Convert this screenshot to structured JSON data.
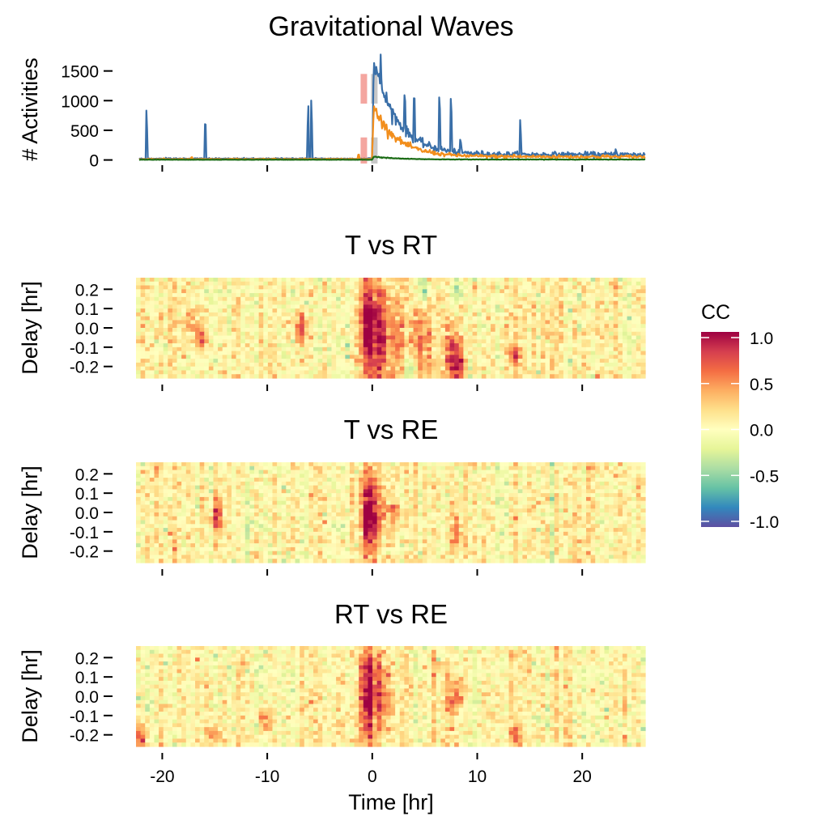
{
  "chart_data": [
    {
      "type": "line",
      "title": "Gravitational Waves",
      "ylabel": "# Activities",
      "xlabel": "",
      "xlim": [
        -22.5,
        26
      ],
      "ylim": [
        -60,
        1850
      ],
      "xticks": [
        -20,
        -10,
        0,
        10,
        20
      ],
      "yticks": [
        0,
        500,
        1000,
        1500
      ],
      "ytick_labels": [
        "0",
        "500",
        "1000",
        "1500"
      ],
      "colors": {
        "T": "#3a6fa8",
        "RT": "#f28e1c",
        "RE": "#1a6b14",
        "marker_red": "#f4a6a0",
        "marker_grey": "#c8c8c8"
      },
      "series": [
        {
          "key": "T",
          "peak": 1800,
          "base_before": 15,
          "base_after": 90,
          "spikes": [
            [
              -21.5,
              910
            ],
            [
              -15.9,
              810
            ],
            [
              -6.1,
              1000
            ],
            [
              -5.8,
              1100
            ],
            [
              0.4,
              1600
            ],
            [
              0.8,
              1800
            ],
            [
              3.1,
              1400
            ],
            [
              4.0,
              1400
            ],
            [
              6.4,
              1290
            ],
            [
              7.5,
              1240
            ],
            [
              8.4,
              430
            ],
            [
              14.1,
              740
            ],
            [
              23.2,
              220
            ]
          ]
        },
        {
          "key": "RT",
          "peak": 950,
          "base_before": 10,
          "base_after": 55,
          "spikes": [
            [
              -17.2,
              60
            ],
            [
              -1.3,
              120
            ],
            [
              5.5,
              200
            ],
            [
              13.5,
              120
            ],
            [
              22.0,
              90
            ]
          ]
        },
        {
          "key": "RE",
          "peak": 60,
          "base_before": 3,
          "base_after": 8,
          "spikes": []
        }
      ],
      "markers": [
        {
          "x": -0.8,
          "y0": -60,
          "y1": 380,
          "color": "marker_red"
        },
        {
          "x": -0.8,
          "y0": 950,
          "y1": 1450,
          "color": "marker_red"
        },
        {
          "x": 0.2,
          "y0": -60,
          "y1": 380,
          "color": "marker_grey"
        },
        {
          "x": 0.2,
          "y0": 950,
          "y1": 1450,
          "color": "marker_grey"
        }
      ]
    },
    {
      "type": "heatmap",
      "title": "T vs RT",
      "ylabel": "Delay [hr]",
      "xlim": [
        -22.5,
        26
      ],
      "ylim": [
        -0.26,
        0.26
      ],
      "yticks": [
        0.2,
        0.1,
        0.0,
        -0.1,
        -0.2
      ],
      "ytick_labels": [
        "0.2",
        "0.1",
        "0.0",
        "-0.1",
        "-0.2"
      ],
      "features": [
        {
          "x": -0.4,
          "y": 0.0,
          "v": 0.95,
          "sx": 0.6,
          "sy": 0.18
        },
        {
          "x": 1.0,
          "y": -0.05,
          "v": 0.6,
          "sx": 0.6,
          "sy": 0.18
        },
        {
          "x": 2.5,
          "y": -0.05,
          "v": 0.4,
          "sx": 0.6,
          "sy": 0.2
        },
        {
          "x": 4.5,
          "y": -0.1,
          "v": 0.45,
          "sx": 0.6,
          "sy": 0.15
        },
        {
          "x": 8.0,
          "y": -0.2,
          "v": 0.8,
          "sx": 0.5,
          "sy": 0.08
        },
        {
          "x": 7.5,
          "y": -0.1,
          "v": 0.45,
          "sx": 0.5,
          "sy": 0.1
        },
        {
          "x": -6.8,
          "y": 0.0,
          "v": 0.7,
          "sx": 0.4,
          "sy": 0.05
        },
        {
          "x": -16.3,
          "y": -0.05,
          "v": 0.6,
          "sx": 0.4,
          "sy": 0.05
        },
        {
          "x": -17.2,
          "y": 0.05,
          "v": 0.45,
          "sx": 0.4,
          "sy": 0.05
        },
        {
          "x": 13.6,
          "y": -0.14,
          "v": 0.7,
          "sx": 0.4,
          "sy": 0.04
        },
        {
          "x": 5.0,
          "y": 0.2,
          "v": -0.55,
          "sx": 0.4,
          "sy": 0.05
        },
        {
          "x": 3.5,
          "y": -0.2,
          "v": -0.5,
          "sx": 0.4,
          "sy": 0.05
        },
        {
          "x": 8.2,
          "y": 0.2,
          "v": -0.4,
          "sx": 0.4,
          "sy": 0.05
        }
      ]
    },
    {
      "type": "heatmap",
      "title": "T vs RE",
      "ylabel": "Delay [hr]",
      "xlim": [
        -22.5,
        26
      ],
      "ylim": [
        -0.26,
        0.26
      ],
      "yticks": [
        0.2,
        0.1,
        0.0,
        -0.1,
        -0.2
      ],
      "ytick_labels": [
        "0.2",
        "0.1",
        "0.0",
        "-0.1",
        "-0.2"
      ],
      "features": [
        {
          "x": -0.4,
          "y": 0.0,
          "v": 0.95,
          "sx": 0.5,
          "sy": 0.15
        },
        {
          "x": 0.6,
          "y": 0.0,
          "v": 0.45,
          "sx": 0.6,
          "sy": 0.12
        },
        {
          "x": 2.0,
          "y": 0.0,
          "v": 0.3,
          "sx": 0.6,
          "sy": 0.04
        },
        {
          "x": -14.8,
          "y": -0.02,
          "v": 0.6,
          "sx": 0.4,
          "sy": 0.05
        },
        {
          "x": 8.0,
          "y": -0.1,
          "v": 0.35,
          "sx": 0.5,
          "sy": 0.08
        }
      ]
    },
    {
      "type": "heatmap",
      "title": "RT vs RE",
      "ylabel": "Delay [hr]",
      "xlim": [
        -22.5,
        26
      ],
      "ylim": [
        -0.26,
        0.26
      ],
      "yticks": [
        0.2,
        0.1,
        0.0,
        -0.1,
        -0.2
      ],
      "ytick_labels": [
        "0.2",
        "0.1",
        "0.0",
        "-0.1",
        "-0.2"
      ],
      "xticks": [
        -20,
        -10,
        0,
        10,
        20
      ],
      "xtick_labels": [
        "-20",
        "-10",
        "0",
        "10",
        "20"
      ],
      "xlabel": "Time [hr]",
      "features": [
        {
          "x": -0.4,
          "y": 0.0,
          "v": 0.9,
          "sx": 0.55,
          "sy": 0.17
        },
        {
          "x": 1.0,
          "y": 0.0,
          "v": 0.55,
          "sx": 0.6,
          "sy": 0.15
        },
        {
          "x": 8.0,
          "y": 0.0,
          "v": 0.65,
          "sx": 0.5,
          "sy": 0.06
        },
        {
          "x": -22.0,
          "y": -0.22,
          "v": 0.7,
          "sx": 0.4,
          "sy": 0.05
        },
        {
          "x": -10.3,
          "y": -0.12,
          "v": 0.5,
          "sx": 0.4,
          "sy": 0.05
        },
        {
          "x": -15.0,
          "y": -0.2,
          "v": 0.5,
          "sx": 0.4,
          "sy": 0.05
        },
        {
          "x": 13.8,
          "y": -0.2,
          "v": 0.5,
          "sx": 0.4,
          "sy": 0.05
        }
      ]
    }
  ],
  "legend": {
    "title": "CC",
    "ticks": [
      1.0,
      0.5,
      0.0,
      -0.5,
      -1.0
    ],
    "tick_labels": [
      "1.0",
      "0.5",
      "0.0",
      "-0.5",
      "-1.0"
    ],
    "colormap": "Spectral",
    "range": [
      -1.0,
      1.0
    ],
    "placement": "right"
  }
}
